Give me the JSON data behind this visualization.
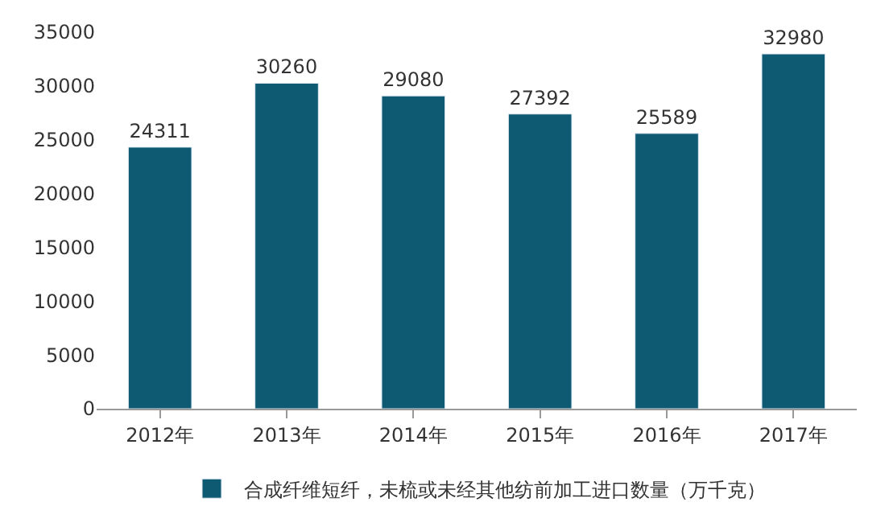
{
  "chart_data": {
    "type": "bar",
    "categories": [
      "2012年",
      "2013年",
      "2014年",
      "2015年",
      "2016年",
      "2017年"
    ],
    "series": [
      {
        "name": "合成纤维短纤，未梳或未经其他纺前加工进口数量（万千克）",
        "color": "#0f5a73",
        "values": [
          24311,
          30260,
          29080,
          27392,
          25589,
          32980
        ]
      }
    ],
    "ylim": [
      0,
      35000
    ],
    "yticks": [
      0,
      5000,
      10000,
      15000,
      20000,
      25000,
      30000,
      35000
    ],
    "legend": "bottom",
    "data_labels": true
  }
}
